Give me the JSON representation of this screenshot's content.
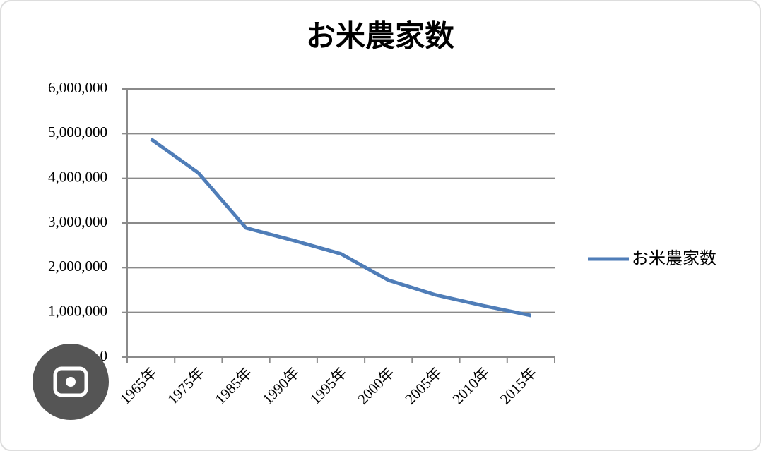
{
  "chart_data": {
    "type": "line",
    "title": "お米農家数",
    "categories": [
      "1965年",
      "1975年",
      "1985年",
      "1990年",
      "1995年",
      "2000年",
      "2005年",
      "2010年",
      "2015年"
    ],
    "series": [
      {
        "name": "お米農家数",
        "color": "#4f7db8",
        "values": [
          4880000,
          4120000,
          2890000,
          2610000,
          2310000,
          1720000,
          1390000,
          1150000,
          930000
        ]
      }
    ],
    "ylim": [
      0,
      6000000
    ],
    "yticks": [
      0,
      {
        "value": 1000000,
        "label": "1,000,000"
      },
      {
        "value": 2000000,
        "label": "2,000,000"
      },
      {
        "value": 3000000,
        "label": "3,000,000"
      },
      {
        "value": 4000000,
        "label": "4,000,000"
      },
      {
        "value": 5000000,
        "label": "5,000,000"
      },
      {
        "value": 6000000,
        "label": "6,000,000"
      }
    ],
    "grid": true,
    "legend": "right"
  }
}
